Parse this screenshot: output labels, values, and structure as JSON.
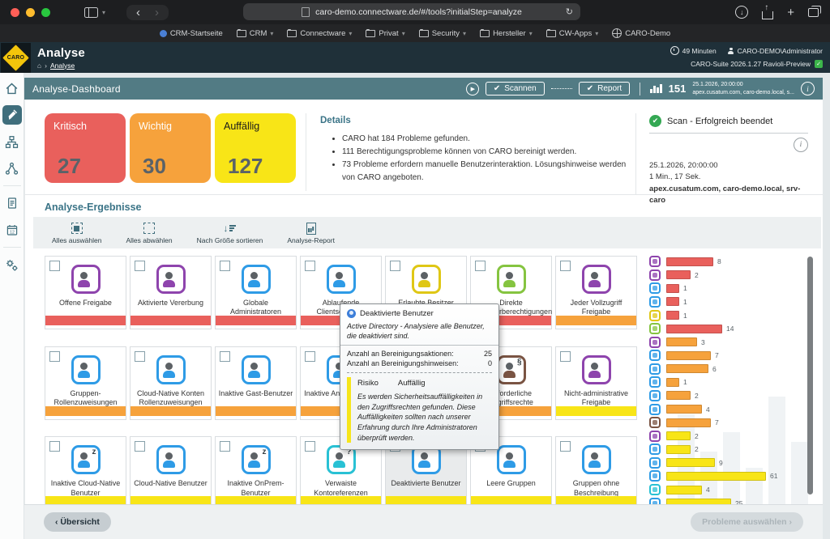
{
  "browser": {
    "url": "caro-demo.connectware.de/#/tools?initialStep=analyze",
    "bookmarks": [
      {
        "label": "CRM-Startseite",
        "icon": "site",
        "dropdown": false
      },
      {
        "label": "CRM",
        "icon": "folder",
        "dropdown": true
      },
      {
        "label": "Connectware",
        "icon": "folder",
        "dropdown": true
      },
      {
        "label": "Privat",
        "icon": "folder",
        "dropdown": true
      },
      {
        "label": "Security",
        "icon": "folder",
        "dropdown": true
      },
      {
        "label": "Hersteller",
        "icon": "folder",
        "dropdown": true
      },
      {
        "label": "CW-Apps",
        "icon": "folder",
        "dropdown": true
      },
      {
        "label": "CARO-Demo",
        "icon": "globe",
        "dropdown": false
      }
    ]
  },
  "header": {
    "logo_text": "CARO",
    "title": "Analyse",
    "breadcrumb": "Analyse",
    "session_time": "49 Minuten",
    "user": "CARO-DEMO\\Administrator",
    "suite": "CARO-Suite 2026.1.27 Ravioli-Preview"
  },
  "sidebar": {
    "items": [
      {
        "icon": "home",
        "active": false
      },
      {
        "icon": "broom",
        "active": true
      },
      {
        "icon": "hierarchy",
        "active": false
      },
      {
        "icon": "network",
        "active": false
      },
      {
        "icon": "divider"
      },
      {
        "icon": "document",
        "active": false
      },
      {
        "icon": "calendar",
        "active": false
      },
      {
        "icon": "divider"
      },
      {
        "icon": "gears",
        "active": false
      }
    ]
  },
  "toolbar": {
    "title": "Analyse-Dashboard",
    "scan_label": "Scannen",
    "report_label": "Report",
    "issue_count": "151",
    "scan_date": "25.1.2026, 20:00:00",
    "scan_hosts": "apex.cusatum.com, caro-demo.local, s..."
  },
  "summary": {
    "cards": [
      {
        "label": "Kritisch",
        "value": "27",
        "bg": "#e9605c",
        "fg": "#ffffff"
      },
      {
        "label": "Wichtig",
        "value": "30",
        "bg": "#f6a23c",
        "fg": "#ffffff"
      },
      {
        "label": "Auffällig",
        "value": "127",
        "bg": "#f8e517",
        "fg": "#1a1a1a"
      }
    ]
  },
  "details": {
    "title": "Details",
    "bullets": [
      "CARO hat 184 Probleme gefunden.",
      "111 Berechtigungsprobleme können von CARO bereinigt werden.",
      "73 Probleme erfordern manuelle Benutzerinteraktion. Lösungshinweise werden von CARO angeboten."
    ]
  },
  "scan_status": {
    "title": "Scan - Erfolgreich beendet",
    "date": "25.1.2026, 20:00:00",
    "duration": "1 Min., 17 Sek.",
    "targets": "apex.cusatum.com, caro-demo.local, srv-caro"
  },
  "results": {
    "title": "Analyse-Ergebnisse",
    "actions": [
      {
        "label": "Alles auswählen",
        "icon": "select-all"
      },
      {
        "label": "Alles abwählen",
        "icon": "deselect-all"
      },
      {
        "label": "Nach Größe sortieren",
        "icon": "sort-size"
      },
      {
        "label": "Analyse-Report",
        "icon": "report-doc"
      }
    ],
    "severity_colors": {
      "critical": "#e9605c",
      "important": "#f6a23c",
      "notable": "#f8e517"
    },
    "tiles": [
      {
        "label": "Offene Freigabe",
        "icon": "open-share-icon",
        "color": "#8e44ad",
        "severity": "critical"
      },
      {
        "label": "Aktivierte Vererbung",
        "icon": "inheritance-icon",
        "color": "#8e44ad",
        "severity": "critical"
      },
      {
        "label": "Globale Administratoren",
        "icon": "global-admins-icon",
        "color": "#2e9be6",
        "severity": "critical"
      },
      {
        "label": "Ablaufende Clientschlüssel",
        "icon": "expiring-key-icon",
        "color": "#2e9be6",
        "severity": "critical"
      },
      {
        "label": "Erlaubte Besitzer",
        "icon": "allowed-owners-icon",
        "color": "#dfc715",
        "severity": "critical"
      },
      {
        "label": "Direkte Benutzerberechtigungen",
        "icon": "direct-permissions-icon",
        "color": "#85c440",
        "severity": "critical"
      },
      {
        "label": "Jeder Vollzugriff Freigabe",
        "icon": "everyone-fullaccess-icon",
        "color": "#8e44ad",
        "severity": "important"
      },
      {
        "label": "Gruppen-Rollenzuweisungen",
        "icon": "group-roles-icon",
        "color": "#2e9be6",
        "severity": "important"
      },
      {
        "label": "Cloud-Native Konten Rollenzuweisungen",
        "icon": "cloud-roles-icon",
        "color": "#2e9be6",
        "severity": "important"
      },
      {
        "label": "Inaktive Gast-Benutzer",
        "icon": "inactive-guests-icon",
        "color": "#2e9be6",
        "severity": "important"
      },
      {
        "label": "Inaktive Anwendungen",
        "icon": "inactive-apps-icon",
        "color": "#2e9be6",
        "severity": "important",
        "glyph": "z"
      },
      {
        "label": "",
        "icon": "hidden-tile-icon",
        "color": "#2e9be6",
        "severity": "important"
      },
      {
        "label": "Erforderliche Zugriffsrechte",
        "icon": "required-rights-icon",
        "color": "#7a5443",
        "severity": "important",
        "glyph": "§"
      },
      {
        "label": "Nicht-administrative Freigabe",
        "icon": "nonadmin-share-icon",
        "color": "#8e44ad",
        "severity": "notable"
      },
      {
        "label": "Inaktive Cloud-Native Benutzer",
        "icon": "inactive-cloud-users-icon",
        "color": "#2e9be6",
        "severity": "notable",
        "glyph": "z"
      },
      {
        "label": "Cloud-Native Benutzer",
        "icon": "cloud-users-icon",
        "color": "#2e9be6",
        "severity": "notable"
      },
      {
        "label": "Inaktive OnPrem-Benutzer",
        "icon": "inactive-onprem-users-icon",
        "color": "#2e9be6",
        "severity": "notable",
        "glyph": "z"
      },
      {
        "label": "Verwaiste Kontoreferenzen",
        "icon": "orphaned-accounts-icon",
        "color": "#29c1d4",
        "severity": "notable",
        "glyph": "?"
      },
      {
        "label": "Deaktivierte Benutzer",
        "icon": "disabled-users-icon",
        "color": "#2e9be6",
        "severity": "notable",
        "selected": true
      },
      {
        "label": "Leere Gruppen",
        "icon": "empty-groups-icon",
        "color": "#2e9be6",
        "severity": "notable"
      },
      {
        "label": "Gruppen ohne Beschreibung",
        "icon": "groups-no-description-icon",
        "color": "#2e9be6",
        "severity": "notable"
      }
    ]
  },
  "chart_data": {
    "type": "bar",
    "orientation": "horizontal",
    "note": "Problemanzahl je Analyse-Kategorie, Balkenfarbe = Schweregrad",
    "colors": {
      "critical": "#e9605c",
      "important": "#f6a23c",
      "notable": "#f8e517"
    },
    "items": [
      {
        "label": "Offene Freigabe",
        "value": 8,
        "severity": "critical",
        "color": "#8e44ad"
      },
      {
        "label": "Aktivierte Vererbung",
        "value": 2,
        "severity": "critical",
        "color": "#8e44ad"
      },
      {
        "label": "Globale Administratoren",
        "value": 1,
        "severity": "critical",
        "color": "#2e9be6"
      },
      {
        "label": "Ablaufende Clientschlüssel",
        "value": 1,
        "severity": "critical",
        "color": "#2e9be6"
      },
      {
        "label": "Erlaubte Besitzer",
        "value": 1,
        "severity": "critical",
        "color": "#dfc715"
      },
      {
        "label": "Direkte Benutzerberechtigungen",
        "value": 14,
        "severity": "critical",
        "color": "#85c440"
      },
      {
        "label": "Jeder Vollzugriff Freigabe",
        "value": 3,
        "severity": "important",
        "color": "#8e44ad"
      },
      {
        "label": "Gruppen-Rollenzuweisungen",
        "value": 7,
        "severity": "important",
        "color": "#2e9be6"
      },
      {
        "label": "Cloud-Native Konten Rollenzuweisungen",
        "value": 6,
        "severity": "important",
        "color": "#2e9be6"
      },
      {
        "label": "Inaktive Gast-Benutzer",
        "value": 1,
        "severity": "important",
        "color": "#2e9be6"
      },
      {
        "label": "Inaktive Anwendungen",
        "value": 2,
        "severity": "important",
        "color": "#2e9be6"
      },
      {
        "label": "",
        "value": 4,
        "severity": "important",
        "color": "#2e9be6"
      },
      {
        "label": "Erforderliche Zugriffsrechte",
        "value": 7,
        "severity": "important",
        "color": "#7a5443"
      },
      {
        "label": "Nicht-administrative Freigabe",
        "value": 2,
        "severity": "notable",
        "color": "#8e44ad"
      },
      {
        "label": "Inaktive Cloud-Native Benutzer",
        "value": 2,
        "severity": "notable",
        "color": "#2e9be6"
      },
      {
        "label": "Cloud-Native Benutzer",
        "value": 9,
        "severity": "notable",
        "color": "#2e9be6"
      },
      {
        "label": "Inaktive OnPrem-Benutzer",
        "value": 61,
        "severity": "notable",
        "color": "#2e9be6"
      },
      {
        "label": "Verwaiste Kontoreferenzen",
        "value": 4,
        "severity": "notable",
        "color": "#29c1d4"
      },
      {
        "label": "Deaktivierte Benutzer",
        "value": 25,
        "severity": "notable",
        "color": "#2e9be6"
      }
    ]
  },
  "tooltip": {
    "title": "Deaktivierte Benutzer",
    "description": "Active Directory - Analysiere alle Benutzer, die deaktiviert sind.",
    "row1_label": "Anzahl an Bereinigungsaktionen:",
    "row1_value": "25",
    "row2_label": "Anzahl an Bereinigungshinweisen:",
    "row2_value": "0",
    "risk_label": "Risiko",
    "risk_value": "Auffällig",
    "risk_text": "Es werden Sicherheitsauffälligkeiten in den Zugriffsrechten gefunden. Diese Auffälligkeiten sollten nach unserer Erfahrung durch Ihre Administratoren überprüft werden."
  },
  "footer": {
    "back_label": "‹ Übersicht",
    "next_label": "Probleme auswählen ›"
  }
}
